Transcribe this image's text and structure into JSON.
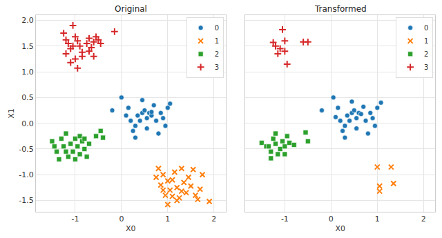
{
  "chart_data": [
    {
      "type": "scatter",
      "title": "Original",
      "x_label": "X0",
      "y_label": "X1",
      "xlim": [
        -1.85,
        2.25
      ],
      "xticks": [
        -1,
        0,
        1,
        2
      ],
      "ylim": [
        -1.72,
        2.1
      ],
      "yticks": [
        {
          "value": -1.5,
          "label": "-1.5"
        },
        {
          "value": -1,
          "label": "-1.0"
        },
        {
          "value": -0.5,
          "label": "-0.5"
        },
        {
          "value": 0,
          "label": "0.0"
        },
        {
          "value": 0.5,
          "label": "0.5"
        },
        {
          "value": 1,
          "label": "1.0"
        },
        {
          "value": 1.5,
          "label": "1.5"
        },
        {
          "value": 2,
          "label": "2.0"
        }
      ],
      "grid": true,
      "legend": "upper right",
      "series": [
        {
          "name": "0",
          "color": "#1f77b4",
          "marker": "circle",
          "x": [
            0.0,
            0.15,
            0.1,
            0.2,
            -0.2,
            0.3,
            0.35,
            0.4,
            0.45,
            0.5,
            0.55,
            0.6,
            0.65,
            0.7,
            0.75,
            0.8,
            0.85,
            0.9,
            1.0,
            1.05,
            0.3,
            0.55,
            0.45,
            0.95,
            0.25,
            0.65
          ],
          "y": [
            0.5,
            0.3,
            0.15,
            0.05,
            0.25,
            -0.05,
            0.15,
            0.05,
            0.2,
            0.25,
            0.1,
            0.2,
            0.15,
            0.35,
            0.05,
            -0.2,
            0.2,
            0.1,
            0.3,
            0.38,
            -0.28,
            -0.1,
            0.45,
            -0.05,
            -0.15,
            0.22
          ]
        },
        {
          "name": "1",
          "color": "#ff7f0e",
          "marker": "x",
          "x": [
            0.75,
            0.8,
            0.85,
            0.9,
            0.95,
            1.0,
            1.05,
            1.1,
            1.15,
            1.2,
            1.25,
            1.3,
            1.35,
            1.4,
            1.45,
            1.5,
            1.55,
            1.6,
            1.7,
            1.75,
            1.9,
            0.9,
            1.0,
            1.2,
            1.3,
            1.65,
            1.1
          ],
          "y": [
            -1.05,
            -0.88,
            -1.2,
            -1.0,
            -1.4,
            -1.58,
            -1.3,
            -1.1,
            -0.95,
            -1.25,
            -1.45,
            -0.88,
            -1.15,
            -1.35,
            -1.05,
            -1.22,
            -0.9,
            -1.4,
            -1.28,
            -1.0,
            -1.52,
            -1.3,
            -1.12,
            -1.5,
            -1.32,
            -1.48,
            -1.42
          ]
        },
        {
          "name": "2",
          "color": "#2ca02c",
          "marker": "square",
          "x": [
            -1.5,
            -1.4,
            -1.3,
            -1.25,
            -1.2,
            -1.15,
            -1.1,
            -1.05,
            -1.0,
            -0.95,
            -0.9,
            -0.85,
            -0.8,
            -0.75,
            -0.7,
            -1.35,
            -0.9,
            -1.2,
            -0.45,
            -0.4,
            -0.55,
            -1.0,
            -0.8,
            -1.45
          ],
          "y": [
            -0.35,
            -0.55,
            -0.3,
            -0.45,
            -0.2,
            -0.65,
            -0.4,
            -0.55,
            -0.3,
            -0.45,
            -0.6,
            -0.35,
            -0.5,
            -0.65,
            -0.4,
            -0.7,
            -0.25,
            -0.55,
            -0.15,
            -0.28,
            -0.25,
            -0.7,
            -0.3,
            -0.45
          ]
        },
        {
          "name": "3",
          "color": "#d62728",
          "marker": "cross",
          "x": [
            -1.25,
            -1.2,
            -1.15,
            -1.1,
            -1.05,
            -1.0,
            -0.95,
            -0.9,
            -0.85,
            -1.0,
            -0.95,
            -1.1,
            -0.75,
            -0.7,
            -0.65,
            -0.6,
            -0.55,
            -0.5,
            -0.45,
            -0.85,
            -1.2,
            -0.15,
            -0.7,
            -1.05,
            -0.6
          ],
          "y": [
            1.75,
            1.62,
            1.55,
            1.45,
            1.9,
            1.68,
            1.6,
            1.5,
            1.38,
            1.25,
            1.07,
            1.18,
            1.55,
            1.65,
            1.47,
            1.58,
            1.68,
            1.62,
            1.55,
            1.3,
            1.35,
            1.78,
            1.4,
            1.5,
            1.3
          ]
        }
      ]
    },
    {
      "type": "scatter",
      "title": "Transformed",
      "x_label": "X0",
      "xlim": [
        -1.85,
        2.25
      ],
      "xticks": [
        -1,
        0,
        1,
        2
      ],
      "ylim": [
        -1.72,
        2.1
      ],
      "yticks": [
        {
          "value": -1.5,
          "label": "-1.5"
        },
        {
          "value": -1,
          "label": "-1.0"
        },
        {
          "value": -0.5,
          "label": "-0.5"
        },
        {
          "value": 0,
          "label": "0.0"
        },
        {
          "value": 0.5,
          "label": "0.5"
        },
        {
          "value": 1,
          "label": "1.0"
        },
        {
          "value": 1.5,
          "label": "1.5"
        },
        {
          "value": 2,
          "label": "2.0"
        }
      ],
      "grid": true,
      "legend": "upper right",
      "tick_labels": "x",
      "series": [
        {
          "name": "0",
          "color": "#1f77b4",
          "marker": "circle",
          "x": [
            0.05,
            0.15,
            0.1,
            0.2,
            -0.2,
            0.3,
            0.35,
            0.4,
            0.45,
            0.5,
            0.55,
            0.6,
            0.65,
            0.7,
            0.75,
            0.8,
            0.85,
            0.9,
            1.0,
            1.08,
            0.3,
            0.55,
            0.45,
            0.95,
            0.25
          ],
          "y": [
            0.5,
            0.3,
            0.12,
            0.05,
            0.25,
            -0.05,
            0.15,
            0.05,
            0.2,
            0.25,
            0.1,
            0.2,
            0.18,
            0.32,
            0.05,
            -0.2,
            0.2,
            0.1,
            0.3,
            0.4,
            -0.28,
            -0.1,
            0.42,
            -0.05,
            -0.15
          ]
        },
        {
          "name": "1",
          "color": "#ff7f0e",
          "marker": "x",
          "x": [
            1.0,
            1.05,
            1.05,
            1.3,
            1.35
          ],
          "y": [
            -0.85,
            -1.22,
            -1.32,
            -0.85,
            -1.17
          ]
        },
        {
          "name": "2",
          "color": "#2ca02c",
          "marker": "square",
          "x": [
            -1.5,
            -1.4,
            -1.3,
            -1.25,
            -1.2,
            -1.15,
            -1.1,
            -1.05,
            -1.0,
            -0.9,
            -0.8,
            -1.2,
            -0.55,
            -0.5,
            -1.3,
            -1.0,
            -1.35,
            -0.95
          ],
          "y": [
            -0.38,
            -0.45,
            -0.55,
            -0.3,
            -0.4,
            -0.6,
            -0.5,
            -0.35,
            -0.45,
            -0.38,
            -0.42,
            -0.2,
            -0.18,
            -0.35,
            -0.68,
            -0.6,
            -0.45,
            -0.25
          ]
        },
        {
          "name": "3",
          "color": "#d62728",
          "marker": "cross",
          "x": [
            -1.25,
            -1.2,
            -1.1,
            -1.05,
            -1.15,
            -1.0,
            -0.95,
            -0.6,
            -0.5,
            -1.0
          ],
          "y": [
            1.57,
            1.5,
            1.45,
            1.82,
            1.35,
            1.4,
            1.15,
            1.58,
            1.58,
            1.6
          ]
        }
      ]
    }
  ]
}
